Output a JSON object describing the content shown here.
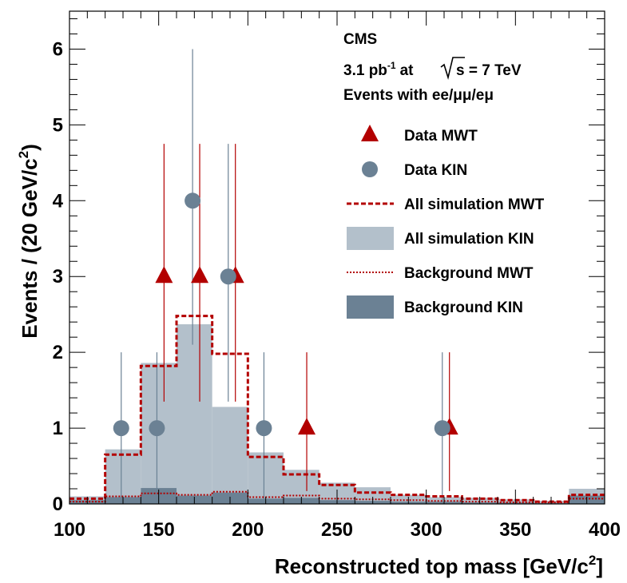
{
  "chart_data": {
    "type": "histogram",
    "header": {
      "experiment": "CMS",
      "lumi_value": "3.1 pb",
      "lumi_exp": "-1",
      "lumi_at": "at",
      "sqrt_s": "s = 7 TeV",
      "channels": "Events with ee/μμ/eμ"
    },
    "xlabel_main": "Reconstructed top mass [GeV/c",
    "xlabel_exp": "2",
    "xlabel_end": "]",
    "ylabel_main": "Events / (20 GeV/c",
    "ylabel_exp": "2",
    "ylabel_end": ")",
    "xlim": [
      100,
      400
    ],
    "ylim": [
      0,
      6.5
    ],
    "x_ticks": [
      100,
      150,
      200,
      250,
      300,
      350,
      400
    ],
    "y_ticks": [
      0,
      1,
      2,
      3,
      4,
      5,
      6
    ],
    "bin_edges": [
      100,
      120,
      140,
      160,
      180,
      200,
      220,
      240,
      260,
      280,
      300,
      320,
      340,
      360,
      380,
      400
    ],
    "series": [
      {
        "name": "Data MWT",
        "kind": "points",
        "marker": "triangle",
        "color": "#b30000",
        "x": [
          153,
          173,
          193,
          233,
          313
        ],
        "y": [
          3,
          3,
          3,
          1,
          1
        ],
        "err_low": [
          1.65,
          1.65,
          1.65,
          0.83,
          0.83
        ],
        "err_high": [
          1.75,
          1.75,
          1.75,
          1.0,
          1.0
        ]
      },
      {
        "name": "Data KIN",
        "kind": "points",
        "marker": "circle",
        "color": "#6b8194",
        "x": [
          129,
          149,
          169,
          189,
          209,
          309
        ],
        "y": [
          1,
          1,
          4,
          3,
          1,
          1
        ],
        "err_low": [
          1.0,
          1.0,
          1.9,
          1.65,
          1.0,
          1.0
        ],
        "err_high": [
          1.0,
          1.0,
          2.0,
          1.75,
          1.0,
          1.0
        ]
      },
      {
        "name": "All simulation MWT",
        "kind": "step-dashed",
        "color": "#b30000",
        "values": [
          0.07,
          0.65,
          1.82,
          2.48,
          1.98,
          0.62,
          0.39,
          0.25,
          0.15,
          0.12,
          0.1,
          0.07,
          0.05,
          0.03,
          0.12
        ]
      },
      {
        "name": "All simulation KIN",
        "kind": "filled",
        "color": "#b3c0cb",
        "values": [
          0.1,
          0.72,
          1.86,
          2.37,
          1.28,
          0.68,
          0.45,
          0.28,
          0.22,
          0.12,
          0.09,
          0.08,
          0.06,
          0.04,
          0.2
        ]
      },
      {
        "name": "Background MWT",
        "kind": "step-dotted",
        "color": "#b30000",
        "values": [
          0.03,
          0.1,
          0.14,
          0.12,
          0.16,
          0.09,
          0.11,
          0.07,
          0.06,
          0.05,
          0.04,
          0.03,
          0.02,
          0.02,
          0.07
        ]
      },
      {
        "name": "Background KIN",
        "kind": "filled",
        "color": "#6b8194",
        "values": [
          0.05,
          0.09,
          0.21,
          0.11,
          0.15,
          0.07,
          0.08,
          0.05,
          0.04,
          0.03,
          0.03,
          0.02,
          0.02,
          0.01,
          0.11
        ]
      }
    ],
    "legend_order": [
      "Data MWT",
      "Data KIN",
      "All simulation MWT",
      "All simulation KIN",
      "Background MWT",
      "Background KIN"
    ],
    "legend_position": "top-right",
    "grid": false
  }
}
